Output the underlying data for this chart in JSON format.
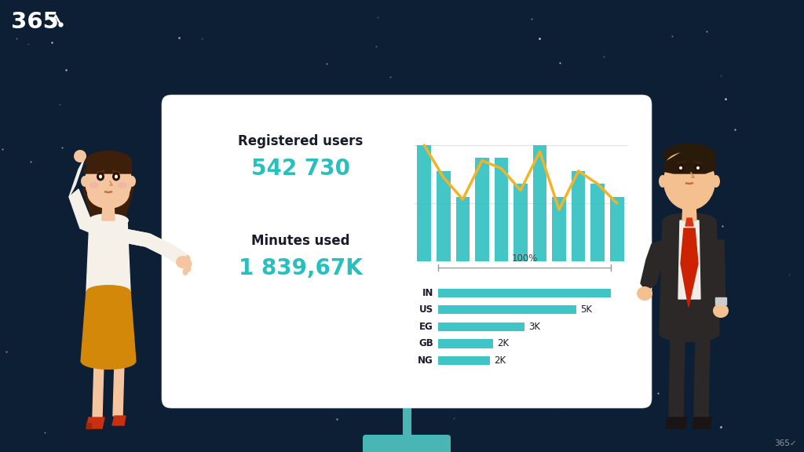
{
  "bg_color": "#0d1f35",
  "board_color": "#ffffff",
  "teal": "#2abfbf",
  "gold": "#f0b429",
  "registered_label": "Registered users",
  "registered_value": "542 730",
  "minutes_label": "Minutes used",
  "minutes_value": "1 839,67K",
  "bar_values": [
    9,
    7,
    5,
    8,
    8,
    6,
    9,
    5,
    7,
    6,
    5
  ],
  "line_values": [
    9.0,
    6.5,
    4.8,
    7.8,
    7.2,
    5.5,
    8.5,
    4.0,
    7.0,
    6.0,
    4.5
  ],
  "horiz_cats": [
    "IN",
    "US",
    "EG",
    "GB",
    "NG"
  ],
  "horiz_vals": [
    10,
    8.0,
    5.0,
    3.2,
    3.0
  ],
  "horiz_lbls": [
    "",
    "5K",
    "3K",
    "2K",
    "2K"
  ],
  "pct_label": "100%",
  "skin_w": "#f5c5a0",
  "hair_w": "#3d1f0a",
  "blouse_w": "#f5f0e8",
  "skirt_w": "#d4880a",
  "shoes_w": "#c83010",
  "skin_m": "#f5c090",
  "hair_m": "#2a1a0a",
  "suit_m": "#2d2828",
  "tie_m": "#cc2200"
}
